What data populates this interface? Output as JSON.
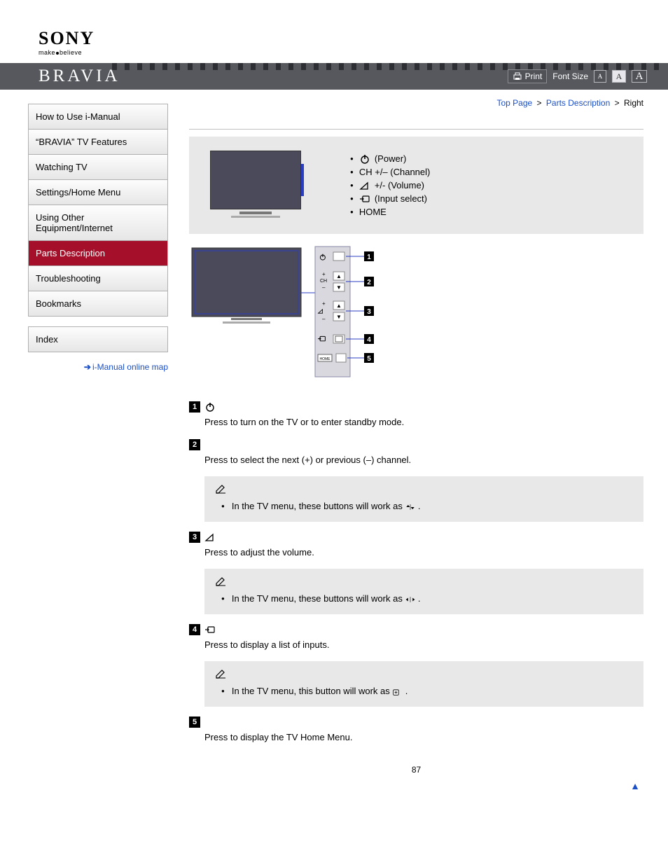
{
  "brand": {
    "logo": "SONY",
    "tagline_a": "make",
    "tagline_b": "believe",
    "product": "BRAVIA"
  },
  "toolbar": {
    "print": "Print",
    "font_size_label": "Font Size",
    "a1": "A",
    "a2": "A",
    "a3": "A"
  },
  "breadcrumb": {
    "top": "Top Page",
    "sec": "Parts Description",
    "cur": "Right",
    "sep": ">"
  },
  "sidebar": {
    "group1": [
      "How to Use i-Manual",
      "“BRAVIA” TV Features",
      "Watching TV",
      "Settings/Home Menu",
      "Using Other Equipment/Internet",
      "Parts Description",
      "Troubleshooting",
      "Bookmarks"
    ],
    "active_index": 5,
    "group2": [
      "Index"
    ],
    "link": "i-Manual online map"
  },
  "topbox": {
    "items": [
      {
        "icon": "power",
        "label": " (Power)"
      },
      {
        "icon": "none",
        "label": "CH +/– (Channel)"
      },
      {
        "icon": "vol",
        "label": " +/- (Volume)"
      },
      {
        "icon": "input",
        "label": " (Input select)"
      },
      {
        "icon": "none",
        "label": "HOME"
      }
    ]
  },
  "diagram": {
    "labels": [
      "1",
      "2",
      "3",
      "4",
      "5"
    ],
    "ch_plus": "+",
    "ch": "CH",
    "ch_minus": "–",
    "v_plus": "+",
    "v_minus": "–",
    "home": "HOME"
  },
  "descriptions": [
    {
      "num": "1",
      "icon": "power",
      "text": "Press to turn on the TV or to enter standby mode."
    },
    {
      "num": "2",
      "icon": "none",
      "text": "Press to select the next (+) or previous (–) channel.",
      "note": "In the TV menu, these buttons will work as ",
      "note_icon": "updown",
      "note_tail": "."
    },
    {
      "num": "3",
      "icon": "vol",
      "text": "Press to adjust the volume.",
      "note": "In the TV menu, these buttons will work as ",
      "note_icon": "leftright",
      "note_tail": "."
    },
    {
      "num": "4",
      "icon": "input",
      "text": "Press to display a list of inputs.",
      "note": "In the TV menu, this button will work as ",
      "note_icon": "plusbox",
      "note_tail": "."
    },
    {
      "num": "5",
      "icon": "none",
      "text": "Press to display the TV Home Menu."
    }
  ],
  "page_number": "87",
  "colors": {
    "link": "#1a4fc8",
    "accent": "#a60f2a",
    "bar": "#56585e",
    "box": "#e8e8e8"
  }
}
